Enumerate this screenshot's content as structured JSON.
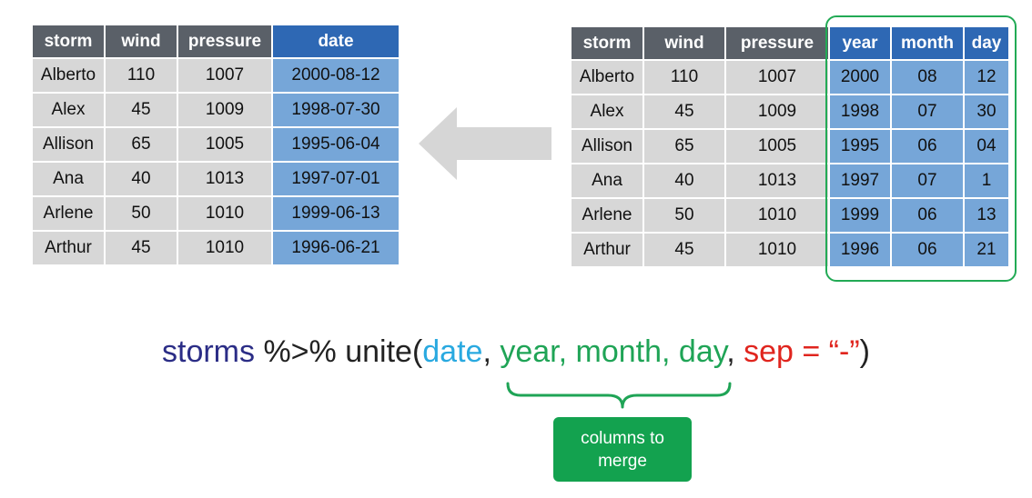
{
  "left_table": {
    "headers": [
      "storm",
      "wind",
      "pressure",
      "date"
    ],
    "rows": [
      [
        "Alberto",
        "110",
        "1007",
        "2000-08-12"
      ],
      [
        "Alex",
        "45",
        "1009",
        "1998-07-30"
      ],
      [
        "Allison",
        "65",
        "1005",
        "1995-06-04"
      ],
      [
        "Ana",
        "40",
        "1013",
        "1997-07-01"
      ],
      [
        "Arlene",
        "50",
        "1010",
        "1999-06-13"
      ],
      [
        "Arthur",
        "45",
        "1010",
        "1996-06-21"
      ]
    ]
  },
  "right_table": {
    "headers": [
      "storm",
      "wind",
      "pressure",
      "year",
      "month",
      "day"
    ],
    "rows": [
      [
        "Alberto",
        "110",
        "1007",
        "2000",
        "08",
        "12"
      ],
      [
        "Alex",
        "45",
        "1009",
        "1998",
        "07",
        "30"
      ],
      [
        "Allison",
        "65",
        "1005",
        "1995",
        "06",
        "04"
      ],
      [
        "Ana",
        "40",
        "1013",
        "1997",
        "07",
        "1"
      ],
      [
        "Arlene",
        "50",
        "1010",
        "1999",
        "06",
        "13"
      ],
      [
        "Arthur",
        "45",
        "1010",
        "1996",
        "06",
        "21"
      ]
    ]
  },
  "code": {
    "fn": "storms",
    "pipe": " %>% unite(",
    "new_col": "date",
    "comma1": ", ",
    "cols": "year, month, day",
    "comma2": ", ",
    "sep": "sep = “-”",
    "close": ")"
  },
  "callout": {
    "line1": "columns to",
    "line2": "merge"
  },
  "colors": {
    "header": "#5a6068",
    "header_highlight": "#2e68b4",
    "cell": "#d7d7d7",
    "cell_highlight": "#76a6d8",
    "merge_outline": "#22aa55",
    "arrow": "#d6d6d6",
    "fn": "#2b2d86",
    "new_col": "#29a9e0",
    "cols": "#1fa456",
    "sep": "#e0251e"
  }
}
